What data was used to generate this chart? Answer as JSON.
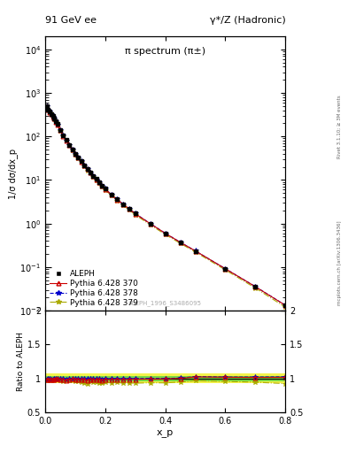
{
  "title_left": "91 GeV ee",
  "title_right": "γ*/Z (Hadronic)",
  "panel_title": "π spectrum (π±)",
  "ylabel_main": "1/σ dσ/dx_p",
  "ylabel_ratio": "Ratio to ALEPH",
  "xlabel": "x_p",
  "right_label_top": "Rivet 3.1.10; ≥ 3M events",
  "right_label_bot": "mcplots.cern.ch [arXiv:1306.3436]",
  "watermark": "ALEPH_1996_S3486095",
  "legend_entries": [
    "ALEPH",
    "Pythia 6.428 370",
    "Pythia 6.428 378",
    "Pythia 6.428 379"
  ],
  "xp_data": [
    0.005,
    0.01,
    0.015,
    0.02,
    0.025,
    0.03,
    0.035,
    0.04,
    0.05,
    0.06,
    0.07,
    0.08,
    0.09,
    0.1,
    0.11,
    0.12,
    0.13,
    0.14,
    0.15,
    0.16,
    0.17,
    0.18,
    0.19,
    0.2,
    0.22,
    0.24,
    0.26,
    0.28,
    0.3,
    0.35,
    0.4,
    0.45,
    0.5,
    0.6,
    0.7,
    0.8
  ],
  "aleph_y": [
    500,
    420,
    370,
    330,
    290,
    260,
    220,
    190,
    140,
    105,
    82,
    64,
    50,
    40,
    33,
    27,
    22,
    18,
    15,
    12.5,
    10.5,
    9.0,
    7.5,
    6.3,
    4.7,
    3.6,
    2.8,
    2.2,
    1.7,
    1.0,
    0.6,
    0.37,
    0.23,
    0.09,
    0.035,
    0.013
  ],
  "py370_y": [
    490,
    415,
    365,
    325,
    285,
    257,
    218,
    188,
    138,
    103,
    80,
    63,
    49.5,
    39.5,
    32.5,
    26.5,
    21.5,
    17.5,
    14.8,
    12.2,
    10.3,
    8.8,
    7.3,
    6.2,
    4.62,
    3.55,
    2.75,
    2.17,
    1.68,
    0.99,
    0.595,
    0.37,
    0.235,
    0.0915,
    0.0355,
    0.0132
  ],
  "py378_y": [
    492,
    416,
    366,
    326,
    286,
    258,
    219,
    189,
    139,
    104,
    81,
    63.5,
    49.8,
    39.8,
    32.8,
    26.8,
    21.8,
    17.8,
    15.0,
    12.4,
    10.4,
    8.9,
    7.4,
    6.25,
    4.65,
    3.57,
    2.77,
    2.18,
    1.69,
    1.0,
    0.598,
    0.372,
    0.236,
    0.0918,
    0.0357,
    0.0133
  ],
  "py379_y": [
    488,
    413,
    363,
    323,
    283,
    255,
    216,
    186,
    136,
    101,
    79,
    62,
    48.5,
    38.5,
    31.5,
    25.5,
    20.5,
    16.5,
    14.5,
    11.8,
    9.9,
    8.4,
    7.0,
    5.9,
    4.4,
    3.38,
    2.6,
    2.05,
    1.58,
    0.935,
    0.56,
    0.35,
    0.222,
    0.086,
    0.033,
    0.012
  ],
  "py370_color": "#cc0000",
  "py378_color": "#0000cc",
  "py379_color": "#aaaa00",
  "ylim_main": [
    0.01,
    20000
  ],
  "ylim_ratio": [
    0.5,
    2.0
  ],
  "xlim": [
    0.0,
    0.8
  ]
}
